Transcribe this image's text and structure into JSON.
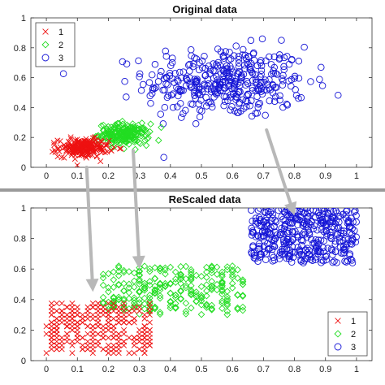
{
  "chart_data": [
    {
      "type": "scatter",
      "title": "Original data",
      "xlim": [
        -0.05,
        1.05
      ],
      "ylim": [
        0,
        1
      ],
      "xticks": [
        "0",
        "0.1",
        "0.2",
        "0.3",
        "0.4",
        "0.5",
        "0.6",
        "0.7",
        "0.8",
        "0.9",
        "1"
      ],
      "yticks": [
        "0",
        "0.2",
        "0.4",
        "0.6",
        "0.8",
        "1"
      ],
      "legend": {
        "placement": "top-left",
        "entries": [
          "1",
          "2",
          "3"
        ]
      },
      "series": [
        {
          "name": "1",
          "marker": "x",
          "color": "#ee1111",
          "cluster": {
            "cx": 0.12,
            "cy": 0.13,
            "sx": 0.04,
            "sy": 0.03,
            "n": 220
          }
        },
        {
          "name": "2",
          "marker": "diamond",
          "color": "#22dd22",
          "cluster": {
            "cx": 0.25,
            "cy": 0.22,
            "sx": 0.04,
            "sy": 0.035,
            "n": 200
          }
        },
        {
          "name": "3",
          "marker": "circle",
          "color": "#1515d6",
          "cluster": {
            "cx": 0.58,
            "cy": 0.57,
            "sx": 0.13,
            "sy": 0.12,
            "n": 380
          }
        }
      ]
    },
    {
      "type": "scatter",
      "title": "ReScaled data",
      "xlim": [
        -0.05,
        1.05
      ],
      "ylim": [
        0,
        1
      ],
      "xticks": [
        "0",
        "0.1",
        "0.2",
        "0.3",
        "0.4",
        "0.5",
        "0.6",
        "0.7",
        "0.8",
        "0.9",
        "1"
      ],
      "yticks": [
        "0",
        "0.2",
        "0.4",
        "0.6",
        "0.8",
        "1"
      ],
      "legend": {
        "placement": "bottom-right",
        "entries": [
          "1",
          "2",
          "3"
        ]
      },
      "series": [
        {
          "name": "1",
          "marker": "x",
          "color": "#ee1111",
          "cluster": {
            "x": [
              0,
              0.34
            ],
            "y": [
              0.05,
              0.38
            ],
            "n": 320
          }
        },
        {
          "name": "2",
          "marker": "diamond",
          "color": "#22dd22",
          "cluster": {
            "x": [
              0.18,
              0.64
            ],
            "y": [
              0.3,
              0.62
            ],
            "n": 260
          }
        },
        {
          "name": "3",
          "marker": "circle",
          "color": "#1515d6",
          "cluster": {
            "x": [
              0.66,
              1.0
            ],
            "y": [
              0.64,
              1.0
            ],
            "n": 400
          }
        }
      ]
    }
  ],
  "annotations": {
    "arrows": [
      {
        "from": [
          0.71,
          0.25
        ],
        "to_axis": 1,
        "to": [
          0.8,
          0.95
        ]
      },
      {
        "from": [
          0.13,
          0.0
        ],
        "to_axis": 1,
        "to": [
          0.15,
          0.45
        ]
      },
      {
        "from": [
          0.28,
          0.11
        ],
        "to_axis": 1,
        "to": [
          0.3,
          0.6
        ]
      }
    ],
    "color": "#b8b8b8"
  }
}
